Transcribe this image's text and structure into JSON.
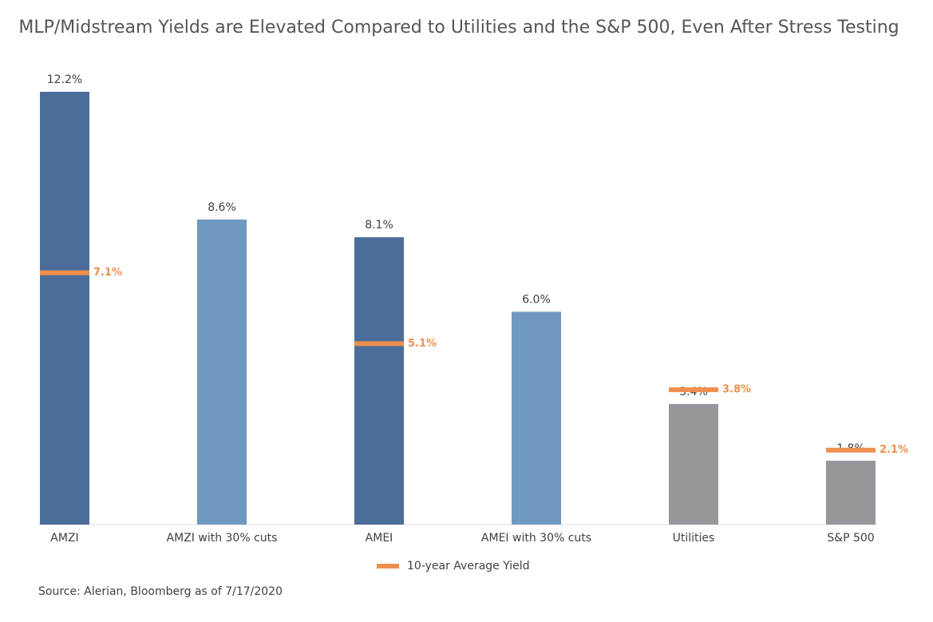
{
  "chart_data": {
    "type": "bar",
    "title": "MLP/Midstream Yields are Elevated Compared to Utilities and the S&P 500, Even After Stress Testing",
    "categories": [
      "AMZI",
      "AMZI with 30% cuts",
      "AMEI",
      "AMEI with 30% cuts",
      "Utilities",
      "S&P 500"
    ],
    "values": [
      12.2,
      8.6,
      8.1,
      6.0,
      3.4,
      1.8
    ],
    "value_labels": [
      "12.2%",
      "8.6%",
      "8.1%",
      "6.0%",
      "3.4%",
      "1.8%"
    ],
    "colors": [
      "#4a6d9a",
      "#7099c0",
      "#4a6d9a",
      "#7099c0",
      "#96979b",
      "#96979b"
    ],
    "series": [
      {
        "name": "10-year Average Yield",
        "color": "#ef8f4e",
        "values": [
          7.1,
          null,
          5.1,
          null,
          3.8,
          2.1
        ],
        "value_labels": [
          "7.1%",
          null,
          "5.1%",
          null,
          "3.8%",
          "2.1%"
        ]
      }
    ],
    "source": "Source: Alerian, Bloomberg as of 7/17/2020"
  }
}
